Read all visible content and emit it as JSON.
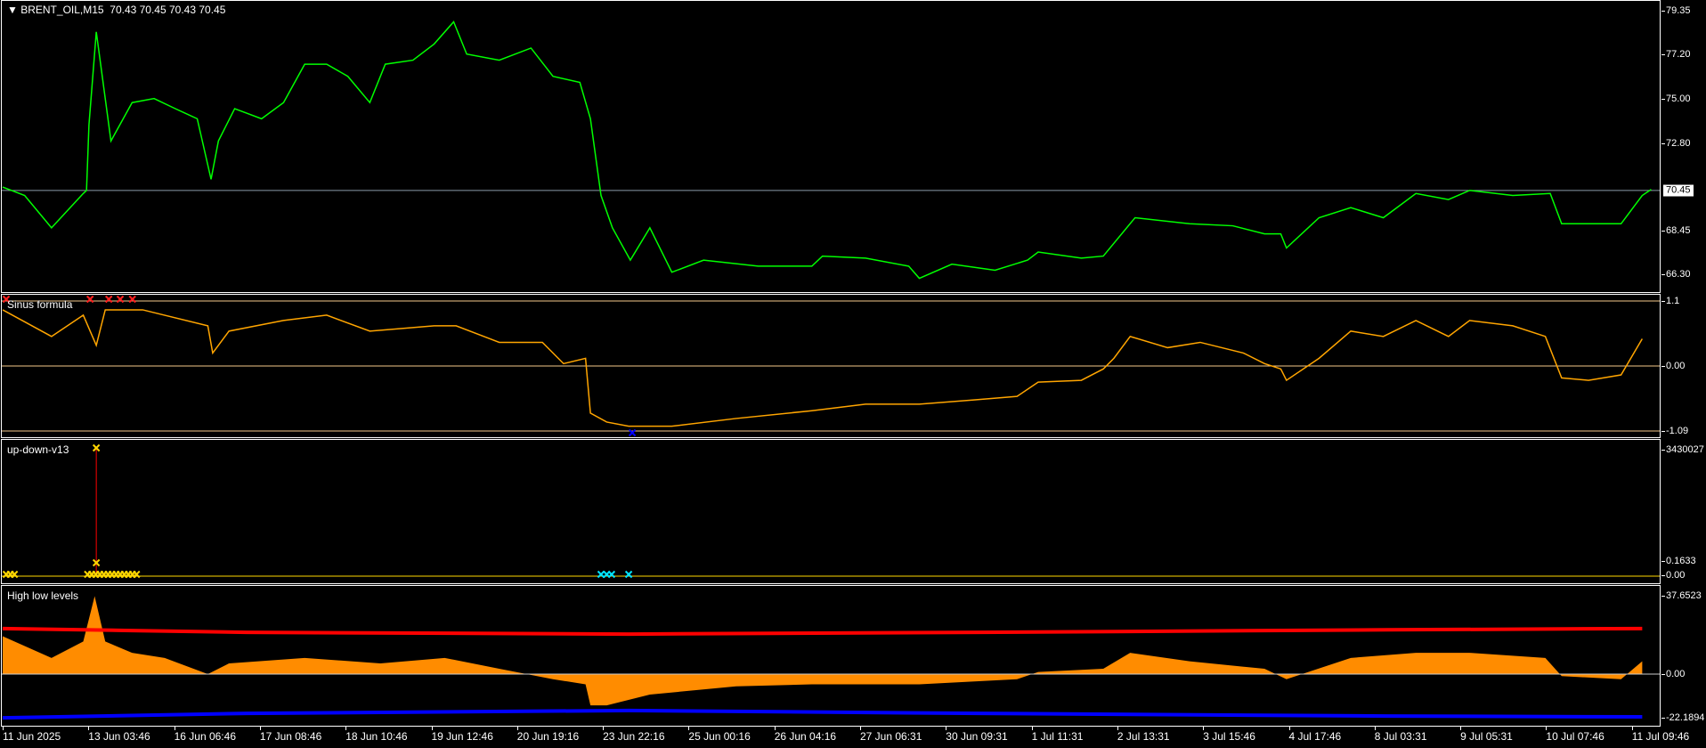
{
  "header": {
    "title": "BRENT_OIL,M15",
    "ohlc": "70.43 70.45 70.43 70.45",
    "menu_icon": "triangle-down-icon"
  },
  "colors": {
    "price": "#00ff00",
    "sinus": "#ffa500",
    "histogram": "#ff8c00",
    "high_level": "#ff0000",
    "low_level": "#0000ff",
    "marker_yellow": "#ffd700",
    "marker_cyan": "#00e5ff",
    "marker_red": "#ff2020"
  },
  "time_axis": [
    "11 Jun 2025",
    "13 Jun 03:46",
    "16 Jun 06:46",
    "17 Jun 08:46",
    "18 Jun 10:46",
    "19 Jun 12:46",
    "20 Jun 19:16",
    "23 Jun 22:16",
    "25 Jun 00:16",
    "26 Jun 04:16",
    "27 Jun 06:31",
    "30 Jun 09:31",
    "1 Jul 11:31",
    "2 Jul 13:31",
    "3 Jul 15:46",
    "4 Jul 17:46",
    "8 Jul 03:31",
    "9 Jul 05:31",
    "10 Jul 07:46",
    "11 Jul 09:46"
  ],
  "chart_data": [
    {
      "type": "line",
      "name": "BRENT_OIL,M15",
      "x_unit": "M15 bars",
      "y_ticks": [
        "79.35",
        "77.20",
        "75.00",
        "72.80",
        "68.45",
        "66.30"
      ],
      "current_price": "70.45",
      "ylim": [
        66.3,
        79.35
      ],
      "points": [
        [
          0,
          70.62
        ],
        [
          27,
          70.2
        ],
        [
          60,
          68.6
        ],
        [
          99,
          70.3
        ],
        [
          103,
          70.45
        ],
        [
          106,
          73.7
        ],
        [
          115,
          78.3
        ],
        [
          126,
          75.0
        ],
        [
          133,
          72.9
        ],
        [
          159,
          74.8
        ],
        [
          186,
          75.0
        ],
        [
          212,
          74.5
        ],
        [
          239,
          74.0
        ],
        [
          256,
          71.0
        ],
        [
          265,
          72.9
        ],
        [
          285,
          74.5
        ],
        [
          318,
          74.0
        ],
        [
          345,
          74.8
        ],
        [
          371,
          76.7
        ],
        [
          398,
          76.7
        ],
        [
          424,
          76.1
        ],
        [
          451,
          74.8
        ],
        [
          470,
          76.7
        ],
        [
          504,
          76.9
        ],
        [
          530,
          77.7
        ],
        [
          554,
          78.8
        ],
        [
          570,
          77.2
        ],
        [
          610,
          76.9
        ],
        [
          649,
          77.5
        ],
        [
          676,
          76.1
        ],
        [
          709,
          75.8
        ],
        [
          722,
          74.0
        ],
        [
          735,
          70.2
        ],
        [
          749,
          68.6
        ],
        [
          771,
          67.0
        ],
        [
          795,
          68.6
        ],
        [
          822,
          66.4
        ],
        [
          861,
          67.0
        ],
        [
          928,
          66.7
        ],
        [
          994,
          66.7
        ],
        [
          1007,
          67.2
        ],
        [
          1060,
          67.1
        ],
        [
          1113,
          66.7
        ],
        [
          1126,
          66.1
        ],
        [
          1166,
          66.8
        ],
        [
          1219,
          66.5
        ],
        [
          1259,
          67.0
        ],
        [
          1272,
          67.4
        ],
        [
          1325,
          67.1
        ],
        [
          1352,
          67.2
        ],
        [
          1391,
          69.1
        ],
        [
          1458,
          68.8
        ],
        [
          1511,
          68.7
        ],
        [
          1550,
          68.3
        ],
        [
          1570,
          68.3
        ],
        [
          1577,
          67.6
        ],
        [
          1617,
          69.1
        ],
        [
          1656,
          69.6
        ],
        [
          1696,
          69.1
        ],
        [
          1736,
          70.3
        ],
        [
          1776,
          70.0
        ],
        [
          1802,
          70.45
        ],
        [
          1855,
          70.2
        ],
        [
          1901,
          70.3
        ],
        [
          1915,
          68.8
        ],
        [
          1948,
          68.8
        ],
        [
          1988,
          68.8
        ],
        [
          2014,
          70.2
        ],
        [
          2025,
          70.5
        ]
      ]
    },
    {
      "type": "line",
      "name": "Sinus formula",
      "x_unit": "M15 bars",
      "y_ticks": [
        "1.1",
        "0.00",
        "-1.09"
      ],
      "ylim": [
        -1.09,
        1.1
      ],
      "points": [
        [
          0,
          0.95
        ],
        [
          60,
          0.5
        ],
        [
          99,
          0.86
        ],
        [
          115,
          0.35
        ],
        [
          126,
          0.95
        ],
        [
          172,
          0.95
        ],
        [
          252,
          0.68
        ],
        [
          258,
          0.22
        ],
        [
          278,
          0.59
        ],
        [
          345,
          0.77
        ],
        [
          398,
          0.86
        ],
        [
          451,
          0.59
        ],
        [
          530,
          0.68
        ],
        [
          557,
          0.68
        ],
        [
          610,
          0.4
        ],
        [
          663,
          0.4
        ],
        [
          689,
          0.04
        ],
        [
          716,
          0.13
        ],
        [
          722,
          -0.79
        ],
        [
          742,
          -0.94
        ],
        [
          769,
          -1.01
        ],
        [
          822,
          -1.01
        ],
        [
          901,
          -0.88
        ],
        [
          994,
          -0.75
        ],
        [
          1060,
          -0.64
        ],
        [
          1126,
          -0.64
        ],
        [
          1193,
          -0.57
        ],
        [
          1246,
          -0.51
        ],
        [
          1272,
          -0.27
        ],
        [
          1325,
          -0.24
        ],
        [
          1352,
          -0.05
        ],
        [
          1365,
          0.13
        ],
        [
          1385,
          0.5
        ],
        [
          1431,
          0.31
        ],
        [
          1471,
          0.4
        ],
        [
          1524,
          0.22
        ],
        [
          1550,
          0.04
        ],
        [
          1570,
          -0.05
        ],
        [
          1577,
          -0.24
        ],
        [
          1617,
          0.13
        ],
        [
          1656,
          0.59
        ],
        [
          1696,
          0.5
        ],
        [
          1736,
          0.77
        ],
        [
          1776,
          0.5
        ],
        [
          1802,
          0.77
        ],
        [
          1855,
          0.68
        ],
        [
          1895,
          0.5
        ],
        [
          1915,
          -0.2
        ],
        [
          1948,
          -0.24
        ],
        [
          1988,
          -0.15
        ],
        [
          2014,
          0.46
        ]
      ],
      "markers": [
        {
          "bar": 0,
          "color": "red",
          "side": "top"
        },
        {
          "bar": 103,
          "color": "red",
          "side": "top"
        },
        {
          "bar": 126,
          "color": "red",
          "side": "top"
        },
        {
          "bar": 140,
          "color": "red",
          "side": "top"
        },
        {
          "bar": 155,
          "color": "red",
          "side": "top"
        },
        {
          "bar": 769,
          "color": "blue",
          "side": "bottom"
        }
      ]
    },
    {
      "type": "scatter",
      "name": "up-down-v13",
      "x_unit": "M15 bars",
      "y_ticks": [
        "3430027",
        "0.00",
        "0.1633"
      ],
      "spike": {
        "bar": 115,
        "value": 3430027
      },
      "markers_yellow": [
        0,
        5,
        10,
        100,
        105,
        110,
        115,
        120,
        125,
        130,
        135,
        140,
        145,
        150,
        155,
        160
      ],
      "markers_cyan": [
        735,
        742,
        748,
        769
      ]
    },
    {
      "type": "area",
      "name": "High low levels",
      "x_unit": "M15 bars",
      "y_ticks": [
        "37.6523",
        "0.00",
        "-22.1894"
      ],
      "ylim": [
        -22.1894,
        37.6523
      ],
      "histogram": [
        [
          0,
          17.8
        ],
        [
          60,
          7.6
        ],
        [
          99,
          15.3
        ],
        [
          113,
          36.6
        ],
        [
          126,
          15.3
        ],
        [
          159,
          10
        ],
        [
          199,
          7.6
        ],
        [
          252,
          0
        ],
        [
          278,
          5
        ],
        [
          371,
          7.6
        ],
        [
          464,
          5
        ],
        [
          543,
          7.6
        ],
        [
          610,
          2.5
        ],
        [
          676,
          -2.5
        ],
        [
          716,
          -5
        ],
        [
          722,
          -15.3
        ],
        [
          742,
          -15.3
        ],
        [
          795,
          -10
        ],
        [
          901,
          -6
        ],
        [
          994,
          -5
        ],
        [
          1126,
          -5
        ],
        [
          1246,
          -2.5
        ],
        [
          1272,
          1
        ],
        [
          1352,
          2.5
        ],
        [
          1385,
          10
        ],
        [
          1458,
          6
        ],
        [
          1550,
          2.5
        ],
        [
          1577,
          -2.5
        ],
        [
          1656,
          7.6
        ],
        [
          1736,
          10
        ],
        [
          1802,
          10
        ],
        [
          1895,
          7.6
        ],
        [
          1915,
          -1
        ],
        [
          1988,
          -2.5
        ],
        [
          2014,
          6
        ]
      ],
      "high_level": [
        [
          0,
          21.4
        ],
        [
          150,
          20.5
        ],
        [
          300,
          19.6
        ],
        [
          769,
          18.8
        ],
        [
          1200,
          19.6
        ],
        [
          1700,
          20.8
        ],
        [
          2014,
          21.4
        ]
      ],
      "low_level": [
        [
          0,
          -21.4
        ],
        [
          300,
          -19.2
        ],
        [
          769,
          -17.8
        ],
        [
          1200,
          -19.2
        ],
        [
          1700,
          -20.5
        ],
        [
          2014,
          -20.9
        ]
      ]
    }
  ]
}
